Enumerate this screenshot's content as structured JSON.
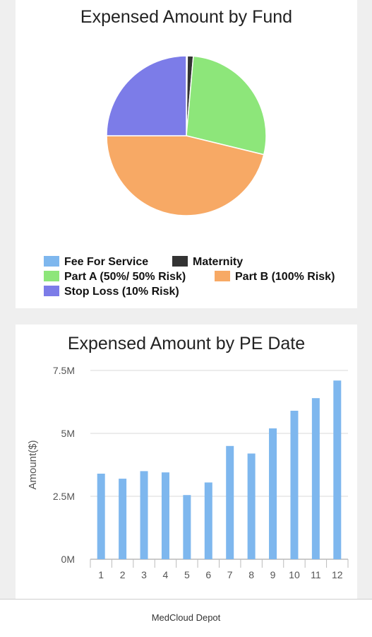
{
  "chart_data": [
    {
      "type": "pie",
      "title": "Expensed Amount by Fund",
      "categories": [
        "Fee For Service",
        "Maternity",
        "Part A (50%/ 50% Risk)",
        "Part B (100% Risk)",
        "Stop Loss (10% Risk)"
      ],
      "values": [
        0.2,
        1.2,
        27.4,
        46.2,
        25.0
      ],
      "colors": [
        "#7eb7ee",
        "#333333",
        "#8de67a",
        "#f7a965",
        "#7c7ce8"
      ],
      "legend_position": "bottom"
    },
    {
      "type": "bar",
      "title": "Expensed Amount by PE Date",
      "xlabel": "",
      "ylabel": "Amount($)",
      "categories": [
        "1",
        "2",
        "3",
        "4",
        "5",
        "6",
        "7",
        "8",
        "9",
        "10",
        "11",
        "12"
      ],
      "values": [
        3.4,
        3.2,
        3.5,
        3.45,
        2.55,
        3.05,
        4.5,
        4.2,
        5.2,
        5.9,
        6.4,
        7.1
      ],
      "unit": "M",
      "ylim": [
        0,
        7.5
      ],
      "yticks": [
        "0M",
        "2.5M",
        "5M",
        "7.5M"
      ],
      "ytick_values": [
        0,
        2.5,
        5,
        7.5
      ],
      "color": "#7eb7ee",
      "grid": true
    }
  ],
  "footer": {
    "text": "MedCloud Depot"
  }
}
